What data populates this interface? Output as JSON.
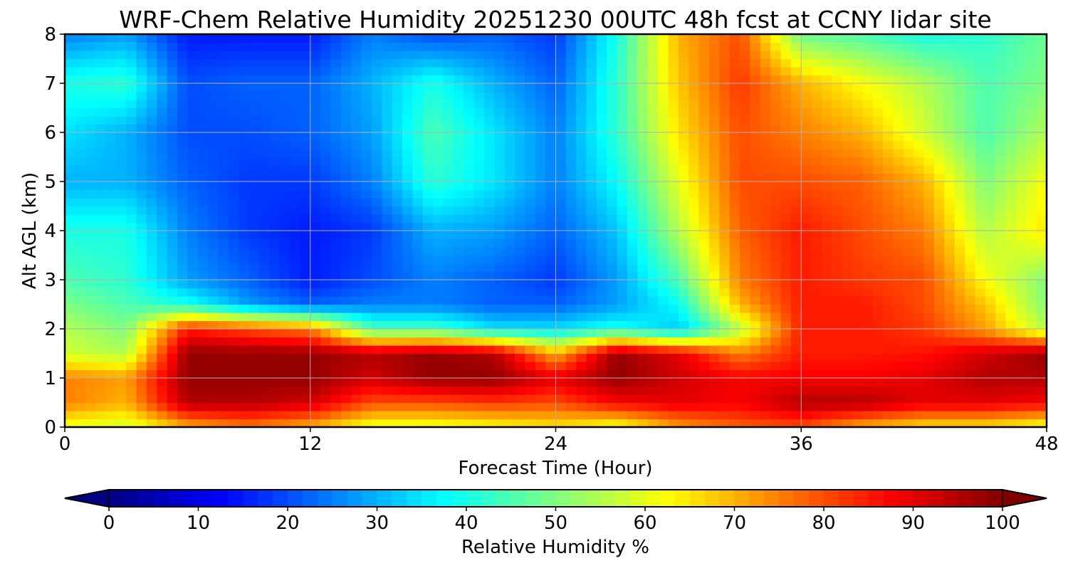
{
  "chart_data": {
    "type": "heatmap",
    "title": "WRF-Chem Relative Humidity 20251230 00UTC 48h fcst at CCNY lidar site",
    "xlabel": "Forecast Time (Hour)",
    "ylabel": "Alt AGL (km)",
    "xlim": [
      0,
      48
    ],
    "ylim": [
      0,
      8
    ],
    "x_ticks": [
      0,
      12,
      24,
      36,
      48
    ],
    "y_ticks": [
      0,
      1,
      2,
      3,
      4,
      5,
      6,
      7,
      8
    ],
    "grid": true,
    "colormap": "jet",
    "colorbar": {
      "label": "Relative Humidity %",
      "ticks": [
        0,
        10,
        20,
        30,
        40,
        50,
        60,
        70,
        80,
        90,
        100
      ],
      "range": [
        0,
        100
      ],
      "extend": "both",
      "orientation": "horizontal"
    },
    "x": [
      0,
      3,
      6,
      9,
      12,
      15,
      18,
      21,
      24,
      27,
      30,
      33,
      36,
      39,
      42,
      45,
      48
    ],
    "y": [
      0,
      0.5,
      1,
      1.5,
      2,
      2.5,
      3,
      4,
      5,
      6,
      7,
      8
    ],
    "values": [
      [
        60,
        58,
        70,
        75,
        70,
        60,
        60,
        62,
        65,
        60,
        72,
        78,
        80,
        70,
        65,
        65,
        60
      ],
      [
        75,
        70,
        95,
        95,
        92,
        80,
        80,
        82,
        80,
        88,
        90,
        88,
        95,
        95,
        90,
        90,
        88
      ],
      [
        75,
        72,
        98,
        98,
        98,
        92,
        98,
        98,
        90,
        98,
        92,
        88,
        88,
        88,
        90,
        95,
        95
      ],
      [
        58,
        55,
        98,
        98,
        98,
        95,
        98,
        95,
        70,
        98,
        90,
        75,
        85,
        85,
        86,
        92,
        98
      ],
      [
        55,
        50,
        85,
        80,
        75,
        45,
        45,
        35,
        35,
        40,
        32,
        55,
        85,
        85,
        82,
        72,
        55
      ],
      [
        50,
        45,
        40,
        28,
        22,
        25,
        25,
        22,
        22,
        28,
        38,
        70,
        85,
        85,
        80,
        68,
        50
      ],
      [
        45,
        42,
        28,
        22,
        15,
        20,
        25,
        22,
        18,
        28,
        45,
        75,
        85,
        82,
        80,
        62,
        50
      ],
      [
        40,
        40,
        25,
        18,
        15,
        18,
        30,
        28,
        22,
        32,
        55,
        78,
        85,
        80,
        75,
        55,
        65
      ],
      [
        30,
        30,
        22,
        18,
        18,
        25,
        42,
        35,
        25,
        38,
        60,
        80,
        80,
        78,
        70,
        50,
        62
      ],
      [
        35,
        30,
        20,
        20,
        22,
        28,
        45,
        35,
        25,
        42,
        65,
        80,
        75,
        70,
        58,
        45,
        55
      ],
      [
        40,
        42,
        20,
        22,
        22,
        30,
        40,
        30,
        22,
        42,
        68,
        82,
        70,
        62,
        55,
        45,
        50
      ],
      [
        25,
        28,
        15,
        15,
        15,
        25,
        20,
        22,
        18,
        40,
        70,
        80,
        48,
        45,
        40,
        42,
        48
      ]
    ]
  }
}
